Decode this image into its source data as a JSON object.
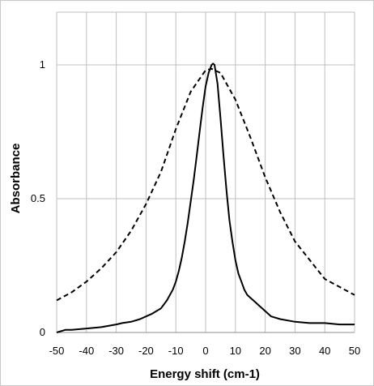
{
  "chart_data": {
    "type": "line",
    "xlabel": "Energy shift (cm-1)",
    "ylabel": "Absorbance",
    "xlim": [
      -50,
      50
    ],
    "ylim": [
      0,
      1.0
    ],
    "x_ticks": [
      -50,
      -40,
      -30,
      -20,
      -10,
      0,
      10,
      20,
      30,
      40,
      50
    ],
    "y_ticks": [
      0,
      0.5,
      1
    ],
    "y_tick_labels": [
      "0",
      "0.5",
      "1"
    ],
    "grid": "vertical and horizontal major gridlines",
    "legend": "none",
    "series": [
      {
        "style": "solid",
        "color": "#000000",
        "x": [
          -50,
          -47,
          -45,
          -40,
          -35,
          -30,
          -28,
          -25,
          -22,
          -20,
          -18,
          -15,
          -13,
          -11,
          -10,
          -9,
          -8,
          -7,
          -6,
          -5,
          -4,
          -3,
          -2,
          -1,
          0,
          1,
          2,
          2.5,
          3,
          4,
          5,
          6,
          7,
          8,
          9,
          10,
          11,
          12,
          13,
          14,
          15,
          16,
          18,
          20,
          22,
          25,
          30,
          35,
          40,
          45,
          50
        ],
        "y": [
          0.0,
          0.01,
          0.01,
          0.015,
          0.02,
          0.03,
          0.035,
          0.04,
          0.05,
          0.06,
          0.07,
          0.09,
          0.12,
          0.16,
          0.19,
          0.23,
          0.28,
          0.34,
          0.41,
          0.49,
          0.57,
          0.66,
          0.75,
          0.84,
          0.92,
          0.97,
          1.0,
          1.005,
          1.0,
          0.93,
          0.8,
          0.66,
          0.53,
          0.42,
          0.34,
          0.27,
          0.22,
          0.19,
          0.16,
          0.14,
          0.13,
          0.12,
          0.1,
          0.08,
          0.06,
          0.05,
          0.04,
          0.035,
          0.035,
          0.03,
          0.03
        ]
      },
      {
        "style": "dashed",
        "color": "#000000",
        "x": [
          -50,
          -45,
          -40,
          -35,
          -30,
          -25,
          -20,
          -15,
          -10,
          -5,
          0,
          2,
          5,
          10,
          15,
          20,
          25,
          30,
          35,
          40,
          45,
          50
        ],
        "y": [
          0.12,
          0.15,
          0.19,
          0.24,
          0.3,
          0.38,
          0.48,
          0.6,
          0.76,
          0.9,
          0.98,
          0.985,
          0.97,
          0.87,
          0.73,
          0.58,
          0.45,
          0.34,
          0.27,
          0.2,
          0.17,
          0.14
        ]
      }
    ]
  }
}
